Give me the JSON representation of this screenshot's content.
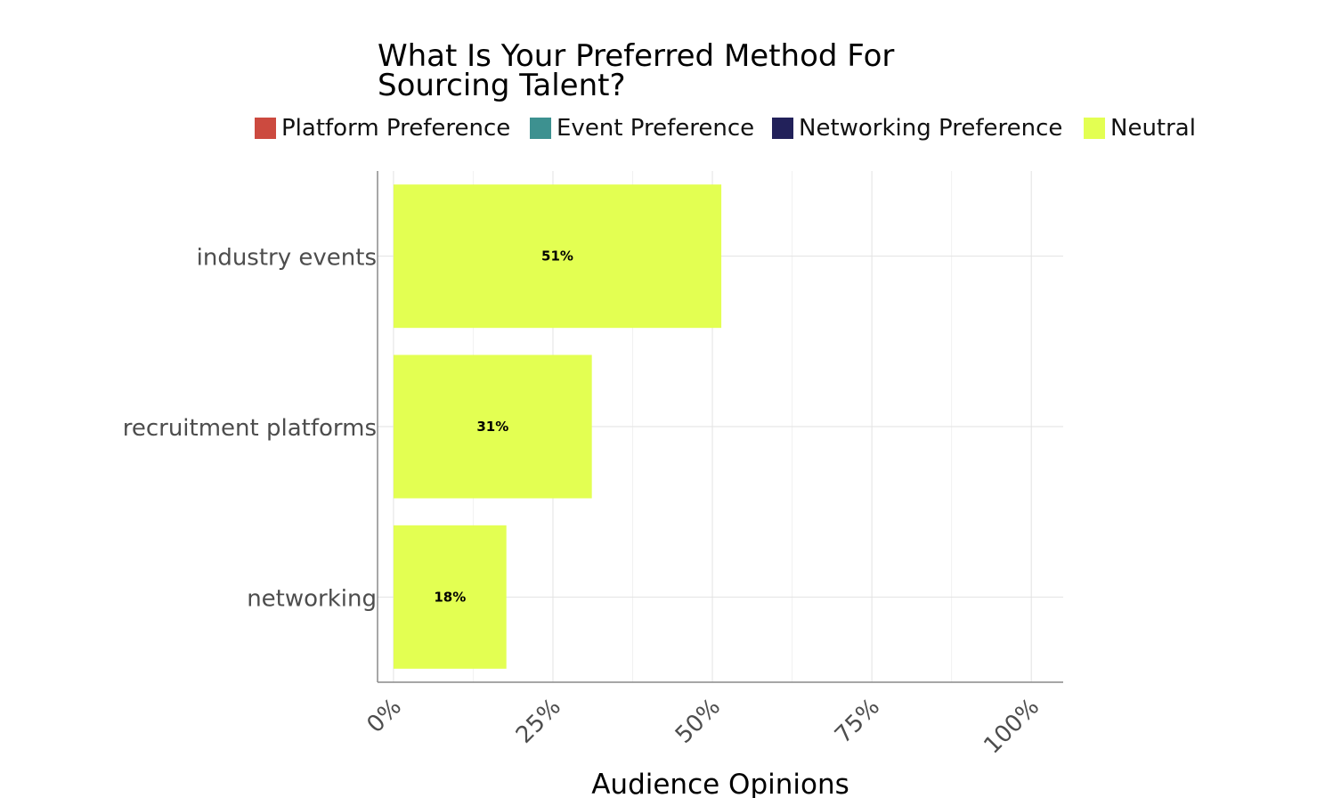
{
  "chart_data": {
    "type": "bar",
    "orientation": "horizontal",
    "title_lines": [
      "What Is Your Preferred Method For",
      "Sourcing Talent?"
    ],
    "legend": [
      {
        "name": "Platform Preference",
        "color": "#cc4a3f"
      },
      {
        "name": "Event Preference",
        "color": "#3d9190"
      },
      {
        "name": "Networking Preference",
        "color": "#22215a"
      },
      {
        "name": "Neutral",
        "color": "#e3ff52"
      }
    ],
    "legend_position": "top",
    "categories": [
      "industry events",
      "recruitment platforms",
      "networking"
    ],
    "series": [
      {
        "name": "Neutral",
        "color": "#e3ff52",
        "values": [
          51.4,
          31.1,
          17.7
        ]
      }
    ],
    "data_labels": [
      "51%",
      "31%",
      "18%"
    ],
    "x_ticks": [
      0,
      25,
      50,
      75,
      100
    ],
    "x_tick_labels": [
      "0%",
      "25%",
      "50%",
      "75%",
      "100%"
    ],
    "xlim": [
      -2.5,
      105
    ],
    "xlabel": "Audience Opinions",
    "ylabel": "",
    "grid": true
  }
}
